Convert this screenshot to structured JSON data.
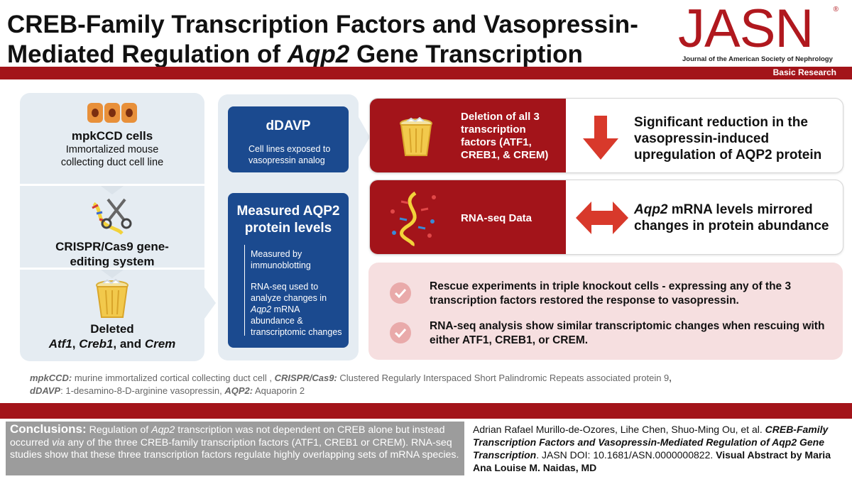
{
  "header": {
    "title_part1": "CREB-Family Transcription Factors and Vasopressin-Mediated Regulation of ",
    "title_italic": "Aqp2",
    "title_part2": " Gene Transcription",
    "logo": "JASN",
    "logo_sub": "Journal of the American Society of Nephrology",
    "category": "Basic Research"
  },
  "column1": {
    "cells_title": "mpkCCD cells",
    "cells_desc": "Immortalized mouse collecting duct cell line",
    "crispr_title": "CRISPR/Cas9 gene-editing system",
    "deleted_label": "Deleted",
    "gene1": "Atf1",
    "sep1": ", ",
    "gene2": "Creb1",
    "sep2": ", and ",
    "gene3": "Crem"
  },
  "column2": {
    "ddavp_title": "dDAVP",
    "ddavp_desc": "Cell lines exposed to vasopressin analog",
    "measured_title": "Measured AQP2 protein levels",
    "measured_desc1": "Measured by immunoblotting",
    "measured_desc2_a": "RNA-seq used to analyze changes in ",
    "measured_desc2_italic": "Aqp2",
    "measured_desc2_b": " mRNA abundance & transcriptomic changes"
  },
  "results": {
    "row1_label": "Deletion of all 3 transcription factors (ATF1, CREB1, & CREM)",
    "row1_result": "Significant reduction in the vasopressin-induced upregulation of AQP2 protein",
    "row2_label": "RNA-seq Data",
    "row2_result_italic": "Aqp2",
    "row2_result": " mRNA levels mirrored changes in protein abundance",
    "rescue1": "Rescue experiments in triple knockout cells - expressing any of the 3 transcription factors restored the response to vasopressin.",
    "rescue2": "RNA-seq analysis show similar transcriptomic changes when rescuing with either ATF1, CREB1, or CREM."
  },
  "abbreviations": {
    "t1": "mpkCCD:",
    "d1": " murine immortalized cortical collecting duct cell , ",
    "t2": "CRISPR/Cas9:",
    "d2": " Clustered Regularly Interspaced Short Palindromic Repeats associated protein 9",
    "comma": ",",
    "t3": "dDAVP",
    "d3": ": 1-desamino-8-D-arginine vasopressin, ",
    "t4": "AQP2:",
    "d4": " Aquaporin 2"
  },
  "conclusions": {
    "label": "Conclusions:",
    "text_a": " Regulation of ",
    "italic1": "Aqp2",
    "text_b": " transcription was not dependent on CREB alone but instead occurred ",
    "italic2": "via",
    "text_c": " any of the three CREB-family transcription factors (ATF1, CREB1 or CREM). RNA-seq studies show that these three transcription factors regulate highly overlapping sets of mRNA species."
  },
  "citation": {
    "authors": "Adrian Rafael Murillo-de-Ozores, Lihe Chen, Shuo-Ming Ou, et al. ",
    "title": "CREB-Family Transcription Factors and Vasopressin-Mediated Regulation of Aqp2 Gene Transcription",
    "doi": ". JASN DOI: 10.1681/ASN.0000000822. ",
    "credit": "Visual Abstract by Maria Ana Louise M. Naidas, MD"
  },
  "colors": {
    "brand_red": "#a3141a",
    "panel_blue": "#1b4a8f",
    "panel_bg": "#e5ecf2",
    "pink_bg": "#f6dfe0"
  }
}
